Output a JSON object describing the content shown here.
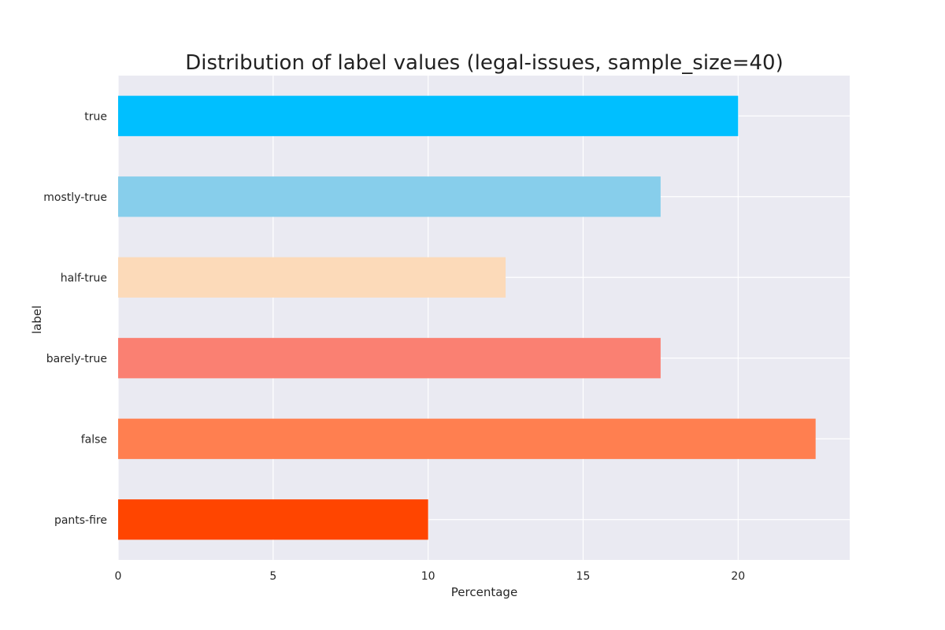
{
  "chart_data": {
    "type": "bar",
    "orientation": "horizontal",
    "title": "Distribution of label values (legal-issues, sample_size=40)",
    "xlabel": "Percentage",
    "ylabel": "label",
    "xlim": [
      0,
      23.6
    ],
    "xticks": [
      0,
      5,
      10,
      15,
      20
    ],
    "grid": true,
    "legend": "none",
    "background_color": "#eaeaf2",
    "grid_color": "#ffffff",
    "categories": [
      "true",
      "mostly-true",
      "half-true",
      "barely-true",
      "false",
      "pants-fire"
    ],
    "values": [
      20,
      17.5,
      12.5,
      17.5,
      22.5,
      10
    ],
    "colors": [
      "#00bfff",
      "#87ceeb",
      "#fcdab9",
      "#fa8072",
      "#ff7f50",
      "#ff4500"
    ]
  }
}
